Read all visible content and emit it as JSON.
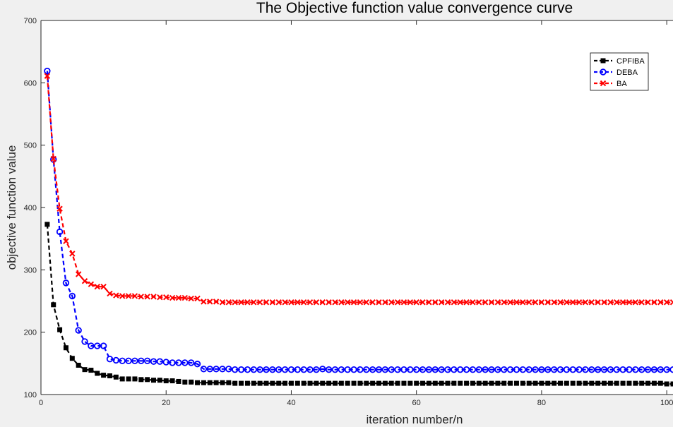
{
  "chart_data": {
    "type": "line",
    "title": "The Objective function value convergence curve",
    "xlabel": "iteration number/n",
    "ylabel": "objective function value",
    "xlim": [
      0,
      101
    ],
    "ylim": [
      100,
      700
    ],
    "xticks": [
      0,
      20,
      40,
      60,
      80,
      100
    ],
    "yticks": [
      100,
      200,
      300,
      400,
      500,
      600,
      700
    ],
    "grid": false,
    "legend_position": "top-right",
    "series": [
      {
        "name": "CPFIBA",
        "color": "#000000",
        "marker": "filled-square",
        "values": [
          373,
          244,
          204,
          175,
          158,
          147,
          140,
          139,
          134,
          131,
          130,
          128,
          125,
          125,
          125,
          124,
          124,
          123,
          123,
          122,
          122,
          121,
          120,
          120,
          119,
          119,
          119,
          119,
          119,
          119,
          118,
          118,
          118,
          118,
          118,
          118,
          118,
          118,
          118,
          118,
          118,
          118,
          118,
          118,
          118,
          118,
          118,
          118,
          118,
          118,
          118,
          118,
          118,
          118,
          118,
          118,
          118,
          118,
          118,
          118,
          118,
          118,
          118,
          118,
          118,
          118,
          118,
          118,
          118,
          118,
          118,
          118,
          118,
          118,
          118,
          118,
          118,
          118,
          118,
          118,
          118,
          118,
          118,
          118,
          118,
          118,
          118,
          118,
          118,
          118,
          118,
          118,
          118,
          118,
          118,
          118,
          118,
          118,
          118,
          117,
          117
        ]
      },
      {
        "name": "DEBA",
        "color": "#0000ff",
        "marker": "circle",
        "values": [
          619,
          477,
          361,
          279,
          258,
          203,
          185,
          178,
          178,
          178,
          157,
          155,
          154,
          154,
          154,
          154,
          154,
          153,
          153,
          152,
          151,
          151,
          151,
          151,
          149,
          141,
          141,
          141,
          141,
          141,
          140,
          140,
          140,
          140,
          140,
          140,
          140,
          140,
          140,
          140,
          140,
          140,
          140,
          140,
          141,
          140,
          140,
          140,
          140,
          140,
          140,
          140,
          140,
          140,
          140,
          140,
          140,
          140,
          140,
          140,
          140,
          140,
          140,
          140,
          140,
          140,
          140,
          140,
          140,
          140,
          140,
          140,
          140,
          140,
          140,
          140,
          140,
          140,
          140,
          140,
          140,
          140,
          140,
          140,
          140,
          140,
          140,
          140,
          140,
          140,
          140,
          140,
          140,
          140,
          140,
          140,
          140,
          140,
          140,
          140,
          140
        ]
      },
      {
        "name": "BA",
        "color": "#ff0000",
        "marker": "x",
        "values": [
          611,
          478,
          398,
          346,
          326,
          293,
          282,
          277,
          273,
          273,
          262,
          259,
          258,
          258,
          258,
          257,
          257,
          257,
          256,
          256,
          255,
          255,
          255,
          254,
          254,
          249,
          249,
          249,
          248,
          248,
          248,
          248,
          248,
          248,
          248,
          248,
          248,
          248,
          248,
          248,
          248,
          248,
          248,
          248,
          248,
          248,
          248,
          248,
          248,
          248,
          248,
          248,
          248,
          248,
          248,
          248,
          248,
          248,
          248,
          248,
          248,
          248,
          248,
          248,
          248,
          248,
          248,
          248,
          248,
          248,
          248,
          248,
          248,
          248,
          248,
          248,
          248,
          248,
          248,
          248,
          248,
          248,
          248,
          248,
          248,
          248,
          248,
          248,
          248,
          248,
          248,
          248,
          248,
          248,
          248,
          248,
          248,
          248,
          248,
          248,
          248
        ]
      }
    ]
  }
}
